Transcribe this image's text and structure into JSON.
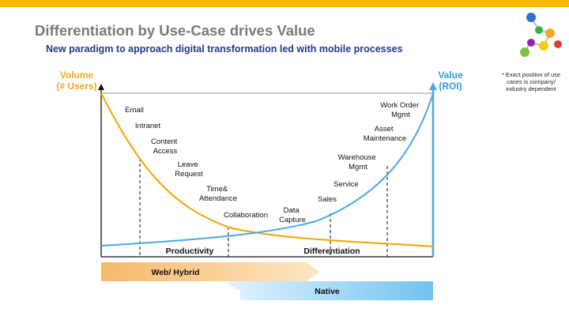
{
  "colors": {
    "accent_bar": "#f5b800",
    "volume_curve": "#f0a500",
    "value_curve": "#4aa8e3",
    "title_gray": "#7a7a7a",
    "subtitle_blue": "#1f3a8a",
    "web_band": "#f7b96a",
    "native_band": "#6fc3f0"
  },
  "title": "Differentiation by Use-Case drives Value",
  "subtitle": "New paradigm to approach digital transformation led with mobile processes",
  "footnote": "* Exact position of use cases is company/ industry dependent",
  "y_left_label": [
    "Volume",
    "(# Users)"
  ],
  "y_right_label": [
    "Value",
    "(ROI)"
  ],
  "use_cases": [
    {
      "lines": [
        "Email"
      ]
    },
    {
      "lines": [
        "Intranet"
      ]
    },
    {
      "lines": [
        "Content",
        "Access"
      ]
    },
    {
      "lines": [
        "Leave",
        "Request"
      ]
    },
    {
      "lines": [
        "Time&",
        "Attendance"
      ]
    },
    {
      "lines": [
        "Collaboration"
      ]
    },
    {
      "lines": [
        "Data",
        "Capture"
      ]
    },
    {
      "lines": [
        "Sales"
      ]
    },
    {
      "lines": [
        "Service"
      ]
    },
    {
      "lines": [
        "Warehouse",
        "Mgmt"
      ]
    },
    {
      "lines": [
        "Asset",
        "Maintenance"
      ]
    },
    {
      "lines": [
        "Work Order",
        "Mgmt"
      ]
    }
  ],
  "regions": [
    "Productivity",
    "Differentiation"
  ],
  "bands": [
    "Web/ Hybrid",
    "Native"
  ]
}
